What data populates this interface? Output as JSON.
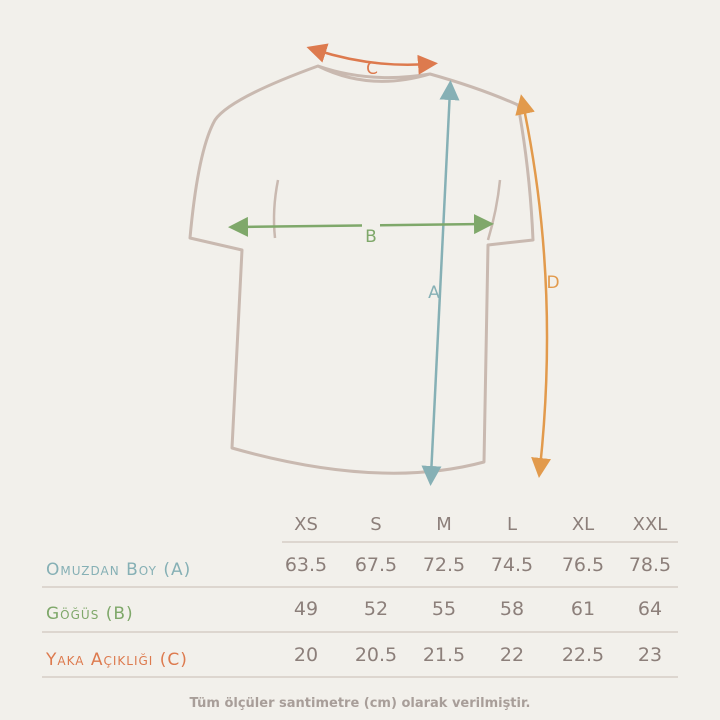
{
  "diagram": {
    "labels": {
      "a": "A",
      "b": "B",
      "c": "C",
      "d": "D"
    },
    "colors": {
      "a": "#86b0b5",
      "b": "#7fa86a",
      "c": "#dd7a4e",
      "d": "#e29a4c",
      "shirt": "#c9b9b0",
      "text": "#8c7f7a"
    }
  },
  "table": {
    "sizes": [
      "XS",
      "S",
      "M",
      "L",
      "XL",
      "XXL"
    ],
    "rows": [
      {
        "label": "Omuzdan Boy (A)",
        "color": "#86b0b5",
        "values": [
          "63.5",
          "67.5",
          "72.5",
          "74.5",
          "76.5",
          "78.5"
        ]
      },
      {
        "label": "Göğüs (B)",
        "color": "#7fa86a",
        "values": [
          "49",
          "52",
          "55",
          "58",
          "61",
          "64"
        ]
      },
      {
        "label": "Yaka Açıklığı (C)",
        "color": "#dd7a4e",
        "values": [
          "20",
          "20.5",
          "21.5",
          "22",
          "22.5",
          "23"
        ]
      }
    ]
  },
  "footnote": "Tüm ölçüler santimetre (cm) olarak verilmiştir."
}
